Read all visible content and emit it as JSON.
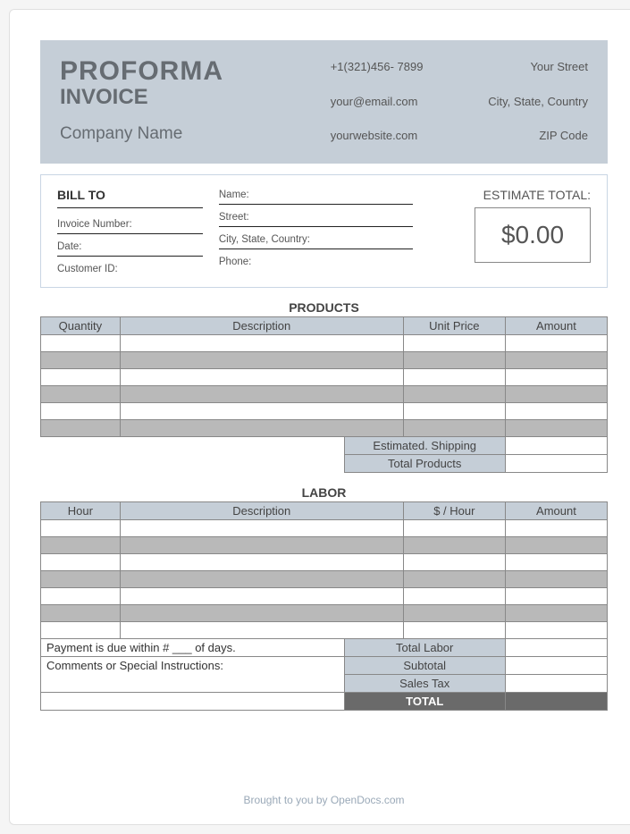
{
  "header": {
    "title_main": "PROFORMA",
    "title_sub": "INVOICE",
    "company": "Company Name",
    "contact_col": {
      "phone": "+1(321)456- 7899",
      "email": "your@email.com",
      "website": "yourwebsite.com"
    },
    "address_col": {
      "street": "Your Street",
      "city": "City, State, Country",
      "zip": "ZIP Code"
    },
    "band_bg": "#c5ced7",
    "text_color": "#666c72"
  },
  "bill_to": {
    "border_color": "#c9d6e4",
    "heading": "BILL TO",
    "col1": {
      "f1": "Invoice Number:",
      "f2": "Date:",
      "f3": "Customer ID:"
    },
    "col2": {
      "f1": "Name:",
      "f2": "Street:",
      "f3": "City, State, Country:",
      "f4": "Phone:"
    },
    "estimate": {
      "label": "ESTIMATE TOTAL:",
      "value": "$0.00"
    }
  },
  "products": {
    "title": "PRODUCTS",
    "columns": [
      "Quantity",
      "Description",
      "Unit Price",
      "Amount"
    ],
    "rows": [
      {
        "alt": false
      },
      {
        "alt": true
      },
      {
        "alt": false
      },
      {
        "alt": true
      },
      {
        "alt": false
      },
      {
        "alt": true
      }
    ],
    "header_bg": "#c5ced7",
    "alt_bg": "#b9b9b9",
    "border_color": "#888888",
    "summary": [
      {
        "label": "Estimated. Shipping",
        "value": ""
      },
      {
        "label": "Total Products",
        "value": ""
      }
    ]
  },
  "labor": {
    "title": "LABOR",
    "columns": [
      "Hour",
      "Description",
      "$ / Hour",
      "Amount"
    ],
    "rows": [
      {
        "alt": false
      },
      {
        "alt": true
      },
      {
        "alt": false
      },
      {
        "alt": true
      },
      {
        "alt": false
      },
      {
        "alt": true
      },
      {
        "alt": false
      }
    ],
    "payment_note": "Payment is due within # ___ of days.",
    "comments_label": "Comments or Special Instructions:",
    "summary": [
      {
        "label": "Total Labor",
        "value": "",
        "dark": false
      },
      {
        "label": "Subtotal",
        "value": "",
        "dark": false
      },
      {
        "label": "Sales Tax",
        "value": "",
        "dark": false
      },
      {
        "label": "TOTAL",
        "value": "",
        "dark": true
      }
    ]
  },
  "footer": {
    "text": "Brought to you by OpenDocs.com",
    "color": "#9aa9b8"
  }
}
